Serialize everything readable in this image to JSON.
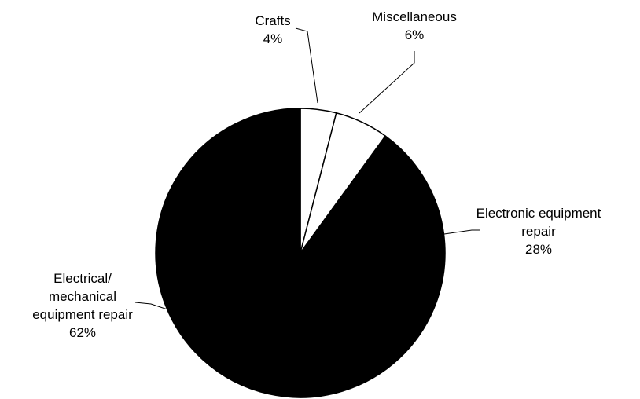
{
  "chart_data": {
    "type": "pie",
    "title": "",
    "unit": "%",
    "slices": [
      {
        "name": "Crafts",
        "value": 4,
        "value_label": "4%",
        "label_lines": [
          "Crafts"
        ],
        "color": "#ffffff"
      },
      {
        "name": "Miscellaneous",
        "value": 6,
        "value_label": "6%",
        "label_lines": [
          "Miscellaneous"
        ],
        "color": "#ffffff"
      },
      {
        "name": "Electronic equipment repair",
        "value": 28,
        "value_label": "28%",
        "label_lines": [
          "Electronic equipment",
          "repair"
        ],
        "color": "#000000"
      },
      {
        "name": "Electrical/ mechanical equipment repair",
        "value": 62,
        "value_label": "62%",
        "label_lines": [
          "Electrical/",
          "mechanical",
          "equipment repair"
        ],
        "color": "#000000"
      }
    ],
    "start_angle": "12 o'clock",
    "direction": "clockwise",
    "legend": "none"
  }
}
